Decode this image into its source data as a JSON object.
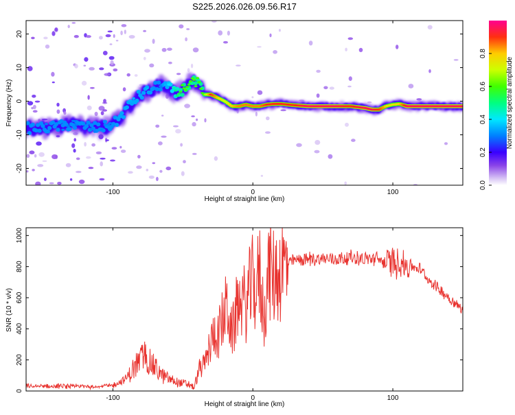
{
  "title": "S225.2026.026.09.56.R17",
  "colors": {
    "snr_line": "#e8322e",
    "axis": "#000000"
  },
  "chart_data": [
    {
      "type": "heatmap",
      "xlabel": "Height of straight line (km)",
      "ylabel": "Frequency (Hz)",
      "xlim": [
        -162,
        150
      ],
      "ylim": [
        -25,
        24
      ],
      "xticks": [
        -100,
        0,
        100
      ],
      "yticks": [
        -20,
        -10,
        0,
        10,
        20
      ],
      "colorbar": {
        "label": "Normalized spectral amplitude",
        "range": [
          0,
          1
        ],
        "ticks": [
          0.0,
          0.2,
          0.4,
          0.6,
          0.8
        ]
      },
      "ridge": {
        "x": [
          -162,
          -150,
          -140,
          -130,
          -120,
          -110,
          -100,
          -95,
          -90,
          -85,
          -80,
          -75,
          -70,
          -65,
          -60,
          -55,
          -50,
          -45,
          -40,
          -35,
          -30,
          -25,
          -20,
          -15,
          -10,
          -5,
          0,
          5,
          10,
          15,
          20,
          30,
          40,
          50,
          60,
          70,
          80,
          85,
          90,
          95,
          100,
          105,
          110,
          120,
          130,
          140,
          150
        ],
        "freq": [
          -8,
          -8,
          -7.5,
          -7,
          -7.5,
          -8,
          -7,
          -5,
          -2,
          0,
          2,
          3,
          4,
          5,
          4,
          2,
          3.5,
          5,
          6,
          2,
          2,
          1,
          0,
          -1.5,
          -1.5,
          -1,
          -1.5,
          -1.5,
          -1,
          -0.8,
          -0.8,
          -1.2,
          -1.5,
          -1.5,
          -1.5,
          -1.5,
          -2,
          -2.5,
          -2.5,
          -1.5,
          -1,
          -0.8,
          -1.5,
          -1.5,
          -1.5,
          -1.5,
          -1.5
        ],
        "amplitude": [
          0.3,
          0.3,
          0.3,
          0.3,
          0.3,
          0.3,
          0.3,
          0.35,
          0.35,
          0.35,
          0.35,
          0.35,
          0.3,
          0.3,
          0.4,
          0.5,
          0.6,
          0.6,
          0.6,
          0.6,
          0.9,
          0.8,
          0.7,
          0.8,
          0.85,
          0.85,
          0.85,
          0.85,
          0.9,
          0.9,
          0.9,
          0.9,
          0.95,
          0.95,
          0.95,
          0.9,
          0.95,
          0.95,
          0.9,
          0.8,
          0.75,
          0.8,
          0.95,
          0.95,
          0.95,
          0.95,
          0.95
        ]
      }
    },
    {
      "type": "line",
      "xlabel": "Height of straight line (km)",
      "ylabel": "SNR (10 * v/v)",
      "xlim": [
        -162,
        150
      ],
      "ylim": [
        0,
        1050
      ],
      "xticks": [
        -100,
        0,
        100
      ],
      "yticks": [
        0,
        200,
        400,
        600,
        800,
        1000
      ],
      "series": [
        {
          "name": "SNR",
          "x": [
            -162,
            -150,
            -140,
            -130,
            -120,
            -110,
            -100,
            -90,
            -85,
            -80,
            -78,
            -75,
            -70,
            -65,
            -60,
            -55,
            -50,
            -45,
            -42,
            -38,
            -35,
            -32,
            -30,
            -27,
            -25,
            -22,
            -20,
            -18,
            -15,
            -12,
            -10,
            -5,
            -2,
            0,
            2,
            5,
            8,
            10,
            12,
            15,
            18,
            20,
            22,
            25,
            30,
            40,
            50,
            60,
            70,
            80,
            90,
            95,
            100,
            102,
            103,
            104,
            106,
            110,
            115,
            120,
            125,
            130,
            135,
            140,
            145,
            150
          ],
          "y": [
            30,
            30,
            30,
            30,
            30,
            30,
            35,
            80,
            150,
            200,
            240,
            200,
            150,
            100,
            80,
            60,
            50,
            40,
            20,
            150,
            160,
            250,
            300,
            400,
            350,
            450,
            500,
            550,
            350,
            500,
            600,
            550,
            650,
            700,
            650,
            750,
            450,
            700,
            780,
            730,
            760,
            780,
            800,
            820,
            840,
            850,
            850,
            850,
            860,
            850,
            850,
            820,
            830,
            830,
            800,
            880,
            820,
            810,
            800,
            780,
            720,
            680,
            640,
            600,
            560,
            520
          ]
        }
      ]
    }
  ]
}
